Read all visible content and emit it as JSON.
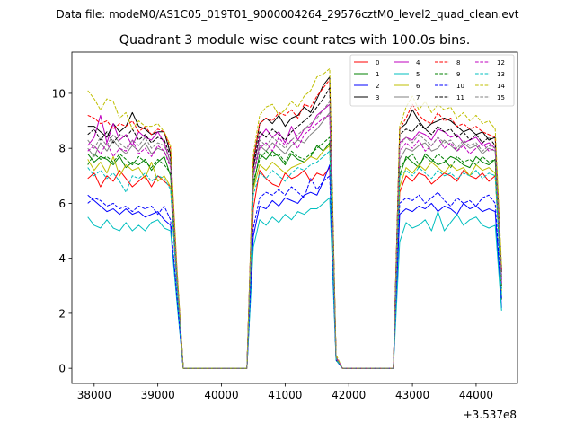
{
  "suptitle": "Data file: modeM0/AS1C05_019T01_9000004264_29576cztM0_level2_quad_clean.evt",
  "chart_data": {
    "type": "line",
    "title": "Quadrant 3 module wise count rates with 100.0s bins.",
    "xlabel": "",
    "ylabel": "",
    "x_offset_label": "+3.537e8",
    "xlim": [
      37650,
      44650
    ],
    "ylim": [
      -0.55,
      11.5
    ],
    "xticks": [
      38000,
      39000,
      40000,
      41000,
      42000,
      43000,
      44000
    ],
    "yticks": [
      0,
      2,
      4,
      6,
      8,
      10
    ],
    "legend_position": "top-right",
    "x": [
      37900,
      38000,
      38100,
      38200,
      38300,
      38400,
      38500,
      38600,
      38700,
      38800,
      38900,
      39000,
      39100,
      39200,
      39300,
      39400,
      39500,
      40400,
      40500,
      40600,
      40700,
      40800,
      40900,
      41000,
      41100,
      41200,
      41300,
      41400,
      41500,
      41600,
      41700,
      41800,
      41900,
      42000,
      42700,
      42800,
      42900,
      43000,
      43100,
      43200,
      43300,
      43400,
      43500,
      43600,
      43700,
      43800,
      43900,
      44000,
      44100,
      44200,
      44300,
      44400
    ],
    "series": [
      {
        "name": "0",
        "color": "#ff0000",
        "dash": "solid",
        "values": [
          6.9,
          7.1,
          6.6,
          7.0,
          6.8,
          7.2,
          6.9,
          6.6,
          6.8,
          7.0,
          6.6,
          7.0,
          6.8,
          6.6,
          3.0,
          0.0,
          0.0,
          0.0,
          5.8,
          7.2,
          6.9,
          6.7,
          6.6,
          7.1,
          6.9,
          7.0,
          7.2,
          6.8,
          7.1,
          7.0,
          7.3,
          0.4,
          0.0,
          0.0,
          0.0,
          6.4,
          7.0,
          6.8,
          7.1,
          7.0,
          6.7,
          6.9,
          7.1,
          7.0,
          6.8,
          7.2,
          7.0,
          6.9,
          7.1,
          6.8,
          7.0,
          3.0
        ]
      },
      {
        "name": "1",
        "color": "#008000",
        "dash": "solid",
        "values": [
          7.8,
          7.5,
          7.7,
          7.6,
          7.4,
          7.7,
          7.3,
          7.5,
          7.4,
          7.6,
          7.2,
          7.5,
          7.7,
          7.0,
          3.2,
          0.0,
          0.0,
          0.0,
          6.6,
          7.8,
          7.6,
          7.9,
          7.7,
          7.4,
          7.8,
          7.6,
          7.5,
          7.7,
          8.1,
          7.9,
          8.2,
          0.3,
          0.0,
          0.0,
          0.0,
          7.0,
          7.7,
          7.5,
          7.3,
          7.8,
          7.6,
          7.4,
          7.5,
          7.7,
          7.6,
          7.4,
          7.3,
          7.7,
          7.5,
          7.4,
          7.6,
          2.5
        ]
      },
      {
        "name": "2",
        "color": "#0000ff",
        "dash": "solid",
        "values": [
          6.3,
          6.1,
          5.9,
          5.7,
          5.8,
          5.6,
          5.8,
          5.6,
          5.7,
          5.5,
          5.6,
          5.7,
          5.4,
          5.2,
          2.5,
          0.0,
          0.0,
          0.0,
          4.8,
          5.9,
          5.8,
          6.1,
          5.9,
          6.2,
          6.1,
          6.0,
          6.3,
          6.4,
          6.3,
          6.8,
          7.4,
          0.3,
          0.0,
          0.0,
          0.0,
          5.6,
          5.8,
          5.7,
          5.9,
          5.8,
          6.0,
          5.7,
          5.9,
          5.8,
          5.6,
          6.0,
          5.8,
          5.9,
          5.7,
          5.8,
          5.7,
          2.2
        ]
      },
      {
        "name": "3",
        "color": "#000000",
        "dash": "solid",
        "values": [
          8.8,
          8.8,
          8.6,
          8.4,
          8.9,
          8.6,
          8.8,
          9.3,
          8.8,
          8.7,
          8.5,
          8.6,
          8.6,
          7.8,
          3.5,
          0.0,
          0.0,
          0.0,
          7.5,
          8.9,
          9.1,
          8.9,
          9.2,
          8.8,
          9.1,
          9.2,
          9.5,
          9.3,
          9.8,
          10.3,
          10.6,
          0.4,
          0.0,
          0.0,
          0.0,
          8.7,
          8.9,
          9.4,
          9.0,
          8.7,
          8.9,
          9.0,
          9.1,
          9.0,
          8.8,
          8.6,
          8.7,
          8.5,
          8.6,
          8.3,
          8.4,
          3.5
        ]
      },
      {
        "name": "4",
        "color": "#bf00bf",
        "dash": "solid",
        "values": [
          8.1,
          8.4,
          9.2,
          8.2,
          8.9,
          8.3,
          8.5,
          8.1,
          8.6,
          8.4,
          8.3,
          8.6,
          8.2,
          7.5,
          3.4,
          0.0,
          0.0,
          0.0,
          7.3,
          8.4,
          8.7,
          8.4,
          8.6,
          8.2,
          8.8,
          8.3,
          8.7,
          8.8,
          9.2,
          9.4,
          9.6,
          0.4,
          0.0,
          0.0,
          0.0,
          8.2,
          8.4,
          8.3,
          8.6,
          8.5,
          8.3,
          8.7,
          8.6,
          8.4,
          8.5,
          8.2,
          8.3,
          8.4,
          8.1,
          8.2,
          8.0,
          3.2
        ]
      },
      {
        "name": "5",
        "color": "#00bfbf",
        "dash": "solid",
        "values": [
          5.5,
          5.2,
          5.1,
          5.4,
          5.1,
          5.0,
          5.3,
          5.0,
          5.2,
          5.0,
          5.3,
          5.4,
          5.1,
          5.0,
          2.4,
          0.0,
          0.0,
          0.0,
          4.4,
          5.4,
          5.2,
          5.5,
          5.3,
          5.6,
          5.4,
          5.7,
          5.6,
          5.8,
          5.8,
          6.0,
          6.2,
          0.3,
          0.0,
          0.0,
          0.0,
          4.6,
          5.3,
          5.1,
          5.2,
          5.4,
          5.0,
          5.7,
          5.0,
          5.3,
          5.6,
          5.2,
          5.4,
          5.5,
          5.2,
          5.1,
          5.2,
          2.1
        ]
      },
      {
        "name": "6",
        "color": "#bfbf00",
        "dash": "solid",
        "values": [
          7.6,
          7.2,
          7.5,
          7.1,
          7.7,
          7.0,
          7.4,
          7.2,
          7.3,
          6.9,
          7.5,
          6.8,
          7.0,
          6.6,
          3.1,
          0.0,
          0.0,
          0.0,
          6.5,
          7.4,
          7.2,
          7.5,
          7.3,
          7.1,
          7.3,
          7.4,
          7.5,
          7.7,
          7.6,
          7.9,
          8.1,
          0.4,
          0.0,
          0.0,
          0.0,
          6.6,
          7.3,
          7.1,
          7.4,
          7.2,
          7.5,
          7.3,
          7.1,
          7.4,
          7.2,
          7.3,
          7.0,
          7.4,
          7.2,
          7.3,
          7.1,
          2.8
        ]
      },
      {
        "name": "7",
        "color": "#808080",
        "dash": "solid",
        "values": [
          8.0,
          7.7,
          8.2,
          7.9,
          8.3,
          8.0,
          7.8,
          8.1,
          7.9,
          8.2,
          7.8,
          8.0,
          7.9,
          7.4,
          3.3,
          0.0,
          0.0,
          0.0,
          7.0,
          8.1,
          7.9,
          8.2,
          8.0,
          7.8,
          8.1,
          8.3,
          8.2,
          8.5,
          8.7,
          9.0,
          9.3,
          0.4,
          0.0,
          0.0,
          0.0,
          7.6,
          8.0,
          7.9,
          8.1,
          8.2,
          7.9,
          8.0,
          8.3,
          8.1,
          7.9,
          8.2,
          8.0,
          8.1,
          7.8,
          8.0,
          7.9,
          3.0
        ]
      },
      {
        "name": "8",
        "color": "#ff0000",
        "dash": "dashed",
        "values": [
          9.2,
          9.1,
          8.9,
          9.0,
          8.7,
          8.9,
          8.8,
          9.0,
          8.6,
          8.8,
          8.5,
          8.7,
          8.6,
          8.0,
          3.6,
          0.0,
          0.0,
          0.0,
          7.6,
          8.9,
          9.1,
          9.0,
          9.3,
          9.2,
          9.4,
          9.1,
          9.6,
          9.5,
          9.9,
          10.2,
          10.5,
          0.4,
          0.0,
          0.0,
          0.0,
          8.7,
          9.1,
          9.6,
          9.2,
          9.0,
          8.9,
          9.3,
          9.0,
          9.1,
          8.8,
          8.9,
          8.7,
          8.8,
          8.6,
          8.5,
          8.4,
          3.5
        ]
      },
      {
        "name": "9",
        "color": "#008000",
        "dash": "dashed",
        "values": [
          7.4,
          7.8,
          7.6,
          7.7,
          7.5,
          7.8,
          7.6,
          7.4,
          7.7,
          7.5,
          7.3,
          7.6,
          7.4,
          7.1,
          3.2,
          0.0,
          0.0,
          0.0,
          6.8,
          7.6,
          7.9,
          7.7,
          7.8,
          7.5,
          7.9,
          7.7,
          7.6,
          7.8,
          8.0,
          8.2,
          8.4,
          0.3,
          0.0,
          0.0,
          0.0,
          7.3,
          7.6,
          7.8,
          7.4,
          7.7,
          7.5,
          7.8,
          7.6,
          7.3,
          7.7,
          7.5,
          7.6,
          7.4,
          7.7,
          7.5,
          7.6,
          2.9
        ]
      },
      {
        "name": "10",
        "color": "#0000ff",
        "dash": "dashed",
        "values": [
          6.0,
          6.2,
          6.1,
          5.9,
          6.0,
          5.8,
          5.9,
          5.7,
          5.9,
          5.8,
          5.9,
          5.6,
          5.9,
          5.4,
          2.6,
          0.0,
          0.0,
          0.0,
          5.1,
          6.2,
          6.4,
          6.3,
          6.5,
          6.3,
          6.6,
          6.4,
          6.2,
          6.9,
          6.5,
          6.8,
          7.0,
          0.3,
          0.0,
          0.0,
          0.0,
          6.0,
          6.2,
          6.1,
          6.3,
          6.0,
          6.2,
          6.4,
          6.1,
          5.9,
          6.2,
          6.0,
          6.1,
          5.9,
          6.2,
          6.3,
          6.0,
          2.5
        ]
      },
      {
        "name": "11",
        "color": "#000000",
        "dash": "dashed",
        "values": [
          8.5,
          8.7,
          8.3,
          8.6,
          8.2,
          8.5,
          8.4,
          8.7,
          8.3,
          8.5,
          8.2,
          8.4,
          8.3,
          7.7,
          3.5,
          0.0,
          0.0,
          0.0,
          7.3,
          8.6,
          8.4,
          8.7,
          8.5,
          8.3,
          8.6,
          8.8,
          9.0,
          9.2,
          9.5,
          9.8,
          10.2,
          0.4,
          0.0,
          0.0,
          0.0,
          8.5,
          8.7,
          8.6,
          8.9,
          8.7,
          8.5,
          8.8,
          8.6,
          8.7,
          8.4,
          8.6,
          8.3,
          8.5,
          8.2,
          8.4,
          8.1,
          3.3
        ]
      },
      {
        "name": "12",
        "color": "#bf00bf",
        "dash": "dashed",
        "values": [
          7.9,
          8.1,
          7.8,
          8.2,
          7.7,
          8.0,
          7.9,
          8.3,
          7.8,
          8.0,
          7.7,
          8.1,
          7.9,
          7.3,
          3.3,
          0.0,
          0.0,
          0.0,
          7.0,
          8.0,
          8.2,
          7.9,
          8.4,
          8.1,
          8.3,
          8.0,
          8.5,
          8.7,
          8.9,
          9.1,
          9.2,
          0.4,
          0.0,
          0.0,
          0.0,
          7.9,
          8.2,
          8.0,
          8.3,
          7.9,
          8.1,
          8.4,
          8.0,
          8.2,
          7.9,
          8.1,
          7.8,
          8.0,
          8.2,
          7.9,
          8.0,
          3.1
        ]
      },
      {
        "name": "13",
        "color": "#00bfbf",
        "dash": "dashed",
        "values": [
          7.3,
          7.0,
          7.2,
          6.9,
          7.1,
          6.8,
          6.4,
          7.0,
          6.9,
          7.1,
          6.8,
          7.0,
          6.9,
          6.5,
          3.0,
          0.0,
          0.0,
          0.0,
          6.3,
          7.1,
          6.9,
          7.2,
          7.0,
          6.8,
          7.1,
          7.3,
          7.2,
          7.4,
          7.5,
          7.7,
          7.9,
          0.3,
          0.0,
          0.0,
          0.0,
          7.0,
          7.2,
          7.0,
          7.3,
          7.1,
          6.9,
          7.2,
          7.0,
          7.1,
          6.9,
          7.1,
          7.0,
          7.2,
          6.9,
          7.1,
          7.0,
          2.7
        ]
      },
      {
        "name": "14",
        "color": "#bfbf00",
        "dash": "dashed",
        "values": [
          10.1,
          9.8,
          9.4,
          9.8,
          9.7,
          9.1,
          9.3,
          8.7,
          9.0,
          8.8,
          8.8,
          8.9,
          8.6,
          8.1,
          3.7,
          0.0,
          0.0,
          0.0,
          7.8,
          9.2,
          9.5,
          9.6,
          9.2,
          9.4,
          9.7,
          9.5,
          9.9,
          10.1,
          10.6,
          10.7,
          10.9,
          0.5,
          0.0,
          0.0,
          0.0,
          8.8,
          9.5,
          9.9,
          9.4,
          9.7,
          9.3,
          9.6,
          9.4,
          9.5,
          9.1,
          9.3,
          9.0,
          9.2,
          8.9,
          9.0,
          8.7,
          3.7
        ]
      },
      {
        "name": "15",
        "color": "#808080",
        "dash": "dashed",
        "values": [
          8.3,
          8.0,
          8.4,
          8.1,
          8.5,
          8.2,
          8.0,
          8.3,
          8.1,
          8.4,
          8.0,
          8.2,
          8.1,
          7.5,
          3.4,
          0.0,
          0.0,
          0.0,
          7.1,
          8.3,
          8.1,
          8.4,
          8.2,
          8.0,
          8.3,
          8.5,
          8.7,
          8.9,
          9.1,
          9.4,
          9.7,
          0.4,
          0.0,
          0.0,
          0.0,
          8.1,
          8.4,
          8.2,
          8.5,
          8.3,
          8.1,
          8.4,
          8.2,
          8.3,
          8.0,
          8.3,
          8.1,
          8.2,
          7.9,
          8.1,
          8.0,
          3.2
        ]
      }
    ]
  }
}
